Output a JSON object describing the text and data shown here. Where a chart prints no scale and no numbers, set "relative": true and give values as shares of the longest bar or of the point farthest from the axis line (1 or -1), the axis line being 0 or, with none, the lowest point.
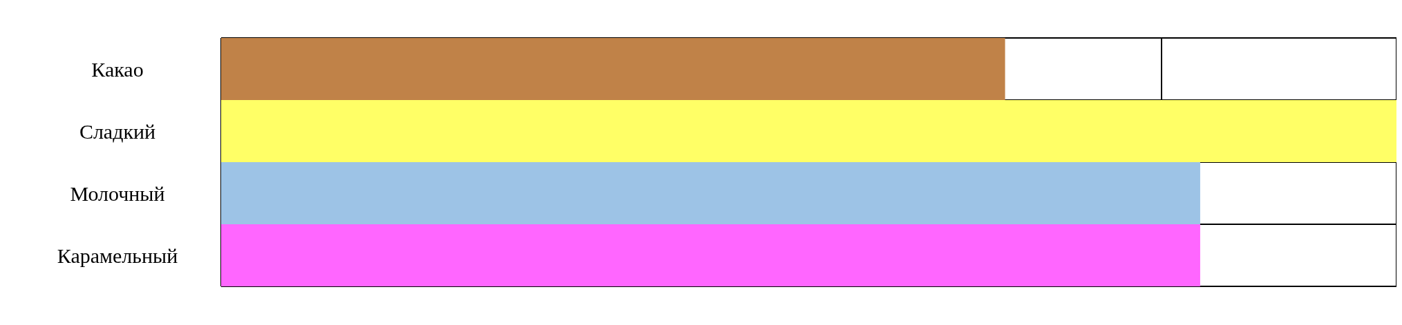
{
  "chart_data": {
    "type": "bar",
    "orientation": "horizontal",
    "relative": true,
    "grid": true,
    "categories": [
      "Какао",
      "Сладкий",
      "Молочный",
      "Карамельный"
    ],
    "values": [
      0.667,
      1,
      0.833,
      0.833
    ],
    "colors": [
      "#c08248",
      "#ffff66",
      "#9dc3e6",
      "#ff66ff"
    ]
  }
}
